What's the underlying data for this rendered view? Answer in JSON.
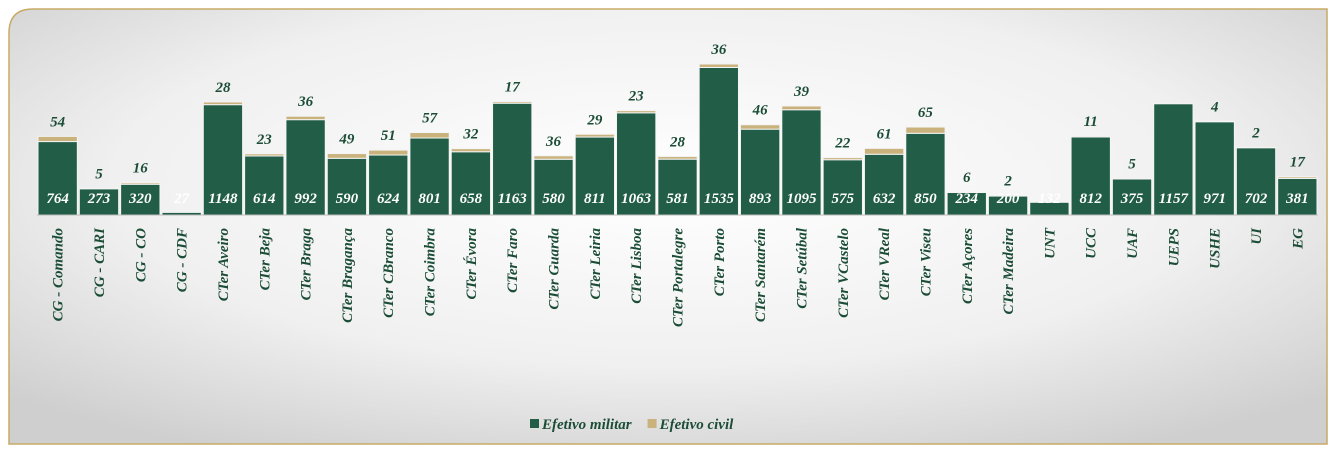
{
  "chart_data": {
    "type": "stacked_bar",
    "categories": [
      "CG - Comando",
      "CG - CARI",
      "CG - CO",
      "CG - CDF",
      "CTer Aveiro",
      "CTer Beja",
      "CTer Braga",
      "CTer Bragança",
      "CTer CBranco",
      "CTer Coimbra",
      "CTer Évora",
      "CTer Faro",
      "CTer Guarda",
      "CTer Leiria",
      "CTer Lisboa",
      "CTer Portalegre",
      "CTer Porto",
      "CTer Santarém",
      "CTer Setúbal",
      "CTer VCastelo",
      "CTer VReal",
      "CTer Viseu",
      "CTer Açores",
      "CTer Madeira",
      "UNT",
      "UCC",
      "UAF",
      "UEPS",
      "USHE",
      "UI",
      "EG"
    ],
    "series": [
      {
        "name": "Efetivo militar",
        "color": "#225e47",
        "values": [
          764,
          273,
          320,
          27,
          1148,
          614,
          992,
          590,
          624,
          801,
          658,
          1163,
          580,
          811,
          1063,
          581,
          1535,
          893,
          1095,
          575,
          632,
          850,
          234,
          200,
          132,
          812,
          375,
          1157,
          971,
          702,
          381
        ]
      },
      {
        "name": "Efetivo civil",
        "color": "#c9b27c",
        "values": [
          54,
          5,
          16,
          null,
          28,
          23,
          36,
          49,
          51,
          57,
          32,
          17,
          36,
          29,
          23,
          28,
          36,
          46,
          39,
          22,
          61,
          65,
          6,
          2,
          null,
          11,
          5,
          null,
          4,
          2,
          17
        ]
      }
    ],
    "legend": "bottom"
  }
}
